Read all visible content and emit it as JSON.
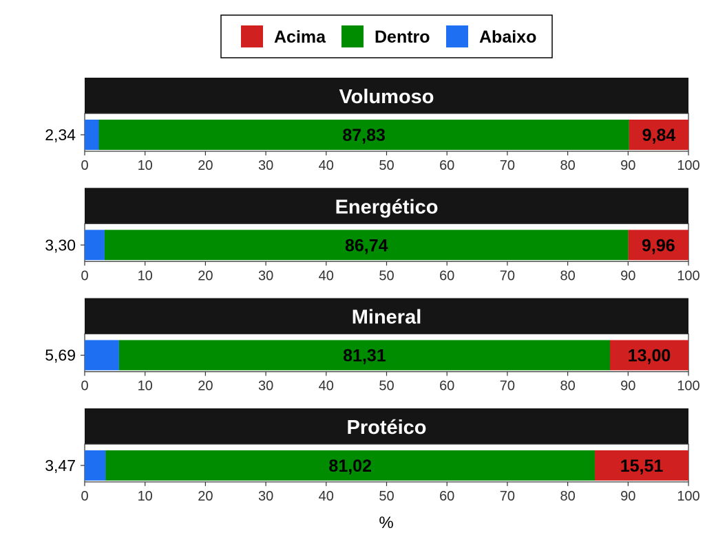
{
  "chart_data": {
    "type": "bar",
    "orientation": "horizontal",
    "stacked": true,
    "xlabel": "%",
    "xlim": [
      0,
      100
    ],
    "xticks": [
      "0",
      "10",
      "20",
      "30",
      "40",
      "50",
      "60",
      "70",
      "80",
      "90",
      "100"
    ],
    "legend": {
      "placement": "top",
      "items": [
        {
          "label": "Acima",
          "color": "#d0201f"
        },
        {
          "label": "Dentro",
          "color": "#008c00"
        },
        {
          "label": "Abaixo",
          "color": "#1f6ff2"
        }
      ]
    },
    "panels": [
      {
        "title": "Volumoso",
        "abaixo": 2.34,
        "dentro": 87.83,
        "acima": 9.84,
        "abaixo_label": "2,34",
        "dentro_label": "87,83",
        "acima_label": "9,84"
      },
      {
        "title": "Energético",
        "abaixo": 3.3,
        "dentro": 86.74,
        "acima": 9.96,
        "abaixo_label": "3,30",
        "dentro_label": "86,74",
        "acima_label": "9,96"
      },
      {
        "title": "Mineral",
        "abaixo": 5.69,
        "dentro": 81.31,
        "acima": 13.0,
        "abaixo_label": "5,69",
        "dentro_label": "81,31",
        "acima_label": "13,00"
      },
      {
        "title": "Protéico",
        "abaixo": 3.47,
        "dentro": 81.02,
        "acima": 15.51,
        "abaixo_label": "3,47",
        "dentro_label": "81,02",
        "acima_label": "15,51"
      }
    ],
    "strip_color": "#151515"
  }
}
